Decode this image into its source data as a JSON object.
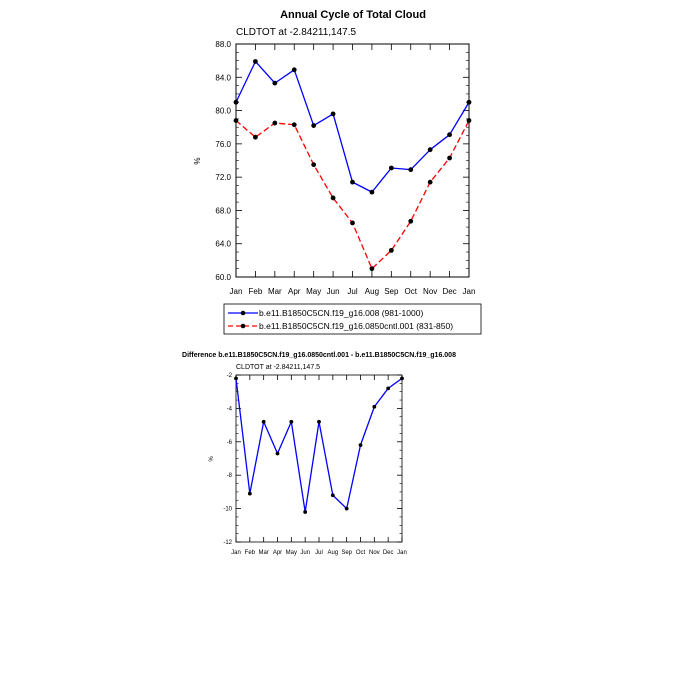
{
  "chart_data": [
    {
      "type": "line",
      "title": "Annual Cycle of Total Cloud",
      "subtitle": "CLDTOT at -2.84211,147.5",
      "xlabel": "",
      "ylabel": "%",
      "categories": [
        "Jan",
        "Feb",
        "Mar",
        "Apr",
        "May",
        "Jun",
        "Jul",
        "Aug",
        "Sep",
        "Oct",
        "Nov",
        "Dec",
        "Jan"
      ],
      "ylim": [
        60.0,
        88.0
      ],
      "yticks": [
        "60.0",
        "64.0",
        "68.0",
        "72.0",
        "76.0",
        "80.0",
        "84.0",
        "88.0"
      ],
      "series": [
        {
          "name": "b.e11.B1850C5CN.f19_g16.008 (981-1000)",
          "color": "#0000ff",
          "dash": "solid",
          "values": [
            81.0,
            85.9,
            83.3,
            84.9,
            78.2,
            79.6,
            71.4,
            70.2,
            73.1,
            72.9,
            75.3,
            77.1,
            81.0
          ]
        },
        {
          "name": "b.e11.B1850C5CN.f19_g16.0850cntl.001 (831-850)",
          "color": "#ff0000",
          "dash": "dashed",
          "values": [
            78.8,
            76.8,
            78.5,
            78.3,
            73.5,
            69.5,
            66.5,
            61.0,
            63.2,
            66.7,
            71.4,
            74.3,
            78.8
          ]
        }
      ]
    },
    {
      "type": "line",
      "title": "Difference b.e11.B1850C5CN.f19_g16.0850cntl.001 - b.e11.B1850C5CN.f19_g16.008",
      "subtitle": "CLDTOT at -2.84211,147.5",
      "xlabel": "",
      "ylabel": "%",
      "categories": [
        "Jan",
        "Feb",
        "Mar",
        "Apr",
        "May",
        "Jun",
        "Jul",
        "Aug",
        "Sep",
        "Oct",
        "Nov",
        "Dec",
        "Jan"
      ],
      "ylim": [
        -12,
        -2
      ],
      "yticks": [
        "-12",
        "-10",
        "-8",
        "-6",
        "-4",
        "-2"
      ],
      "series": [
        {
          "name": "Difference",
          "color": "#0000ff",
          "dash": "solid",
          "values": [
            -2.2,
            -9.1,
            -4.8,
            -6.7,
            -4.8,
            -10.2,
            -4.8,
            -9.2,
            -10.0,
            -6.2,
            -3.9,
            -2.8,
            -2.2
          ]
        }
      ]
    }
  ]
}
